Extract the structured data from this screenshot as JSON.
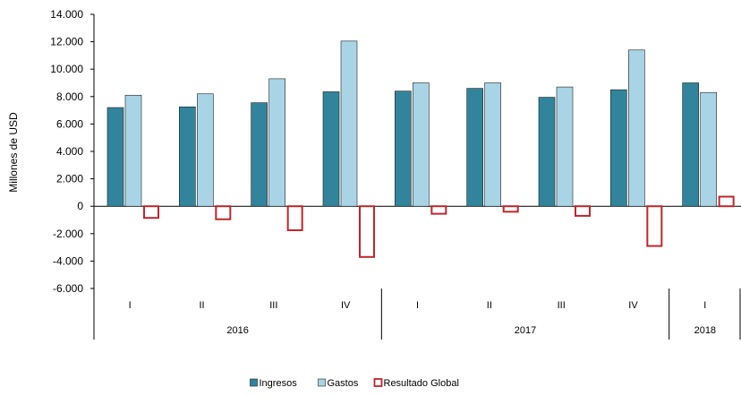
{
  "chart_data": {
    "type": "bar",
    "ylabel": "Millones de USD",
    "ylim": [
      -6000,
      14000
    ],
    "yticks": [
      14000,
      12000,
      10000,
      8000,
      6000,
      4000,
      2000,
      0,
      -2000,
      -4000,
      -6000
    ],
    "ytick_labels": [
      "14.000",
      "12.000",
      "10.000",
      "8.000",
      "6.000",
      "4.000",
      "2.000",
      "0",
      "-2.000",
      "-4.000",
      "-6.000"
    ],
    "categories": [
      "I",
      "II",
      "III",
      "IV",
      "I",
      "II",
      "III",
      "IV",
      "I"
    ],
    "years": [
      {
        "label": "2016",
        "count": 4
      },
      {
        "label": "2017",
        "count": 4
      },
      {
        "label": "2018",
        "count": 1
      }
    ],
    "series": [
      {
        "name": "Ingresos",
        "color": "#31849b",
        "style": "filled",
        "values": [
          7200,
          7250,
          7550,
          8350,
          8400,
          8600,
          7950,
          8500,
          9000
        ]
      },
      {
        "name": "Gastos",
        "color": "#a9d4e6",
        "style": "filled",
        "values": [
          8100,
          8200,
          9300,
          12050,
          9000,
          9000,
          8700,
          11400,
          8300
        ]
      },
      {
        "name": "Resultado Global",
        "color": "#c0262d",
        "style": "outline",
        "values": [
          -850,
          -950,
          -1750,
          -3700,
          -550,
          -400,
          -700,
          -2900,
          700
        ]
      }
    ],
    "legend_position": "bottom-center"
  }
}
